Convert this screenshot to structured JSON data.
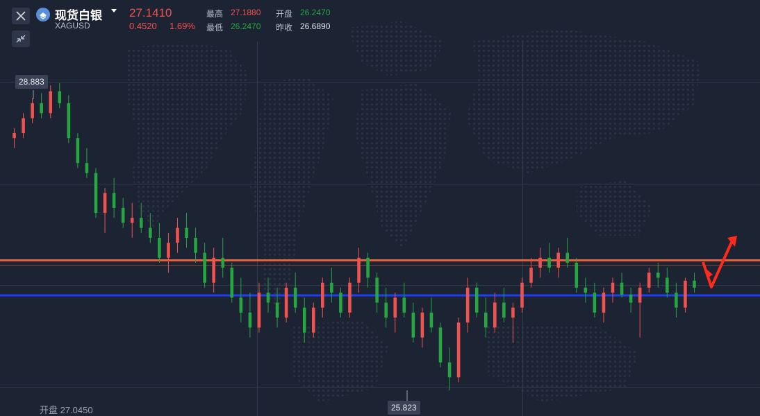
{
  "header": {
    "close_icon": "close-icon",
    "collapse_icon": "collapse-arrows-icon",
    "logo_icon": "silver-logo-icon",
    "title": "现货白银",
    "symbol": "XAGUSD",
    "price": "27.1410",
    "change": "0.4520",
    "change_pct": "1.69%",
    "high_label": "最高",
    "high_value": "27.1880",
    "low_label": "最低",
    "low_value": "26.2470",
    "open_label": "开盘",
    "open_value": "26.2470",
    "prev_close_label": "昨收",
    "prev_close_value": "26.6890"
  },
  "footer": {
    "open_text": "开盘 27.0450"
  },
  "colors": {
    "background": "#1c2333",
    "up": "#ef5350",
    "down": "#26a641",
    "resistance": "#e8603c",
    "support": "#1e3ff0",
    "arrow": "#ff2a1a"
  },
  "chart_data": {
    "type": "candlestick",
    "y_range": [
      25.6,
      29.0
    ],
    "max_marker": "28.883",
    "min_marker": "25.823",
    "max_value": 28.883,
    "min_value": 25.823,
    "resistance_level": 27.2,
    "support_level": 26.8,
    "grid": true,
    "candles": [
      [
        28.35,
        28.45,
        28.25,
        28.4
      ],
      [
        28.4,
        28.6,
        28.35,
        28.55
      ],
      [
        28.55,
        28.75,
        28.5,
        28.7
      ],
      [
        28.7,
        28.8,
        28.55,
        28.6
      ],
      [
        28.6,
        28.88,
        28.55,
        28.82
      ],
      [
        28.82,
        28.9,
        28.65,
        28.7
      ],
      [
        28.7,
        28.78,
        28.3,
        28.35
      ],
      [
        28.35,
        28.4,
        28.05,
        28.1
      ],
      [
        28.1,
        28.25,
        27.95,
        28.0
      ],
      [
        28.0,
        28.05,
        27.55,
        27.6
      ],
      [
        27.6,
        27.85,
        27.4,
        27.8
      ],
      [
        27.8,
        27.95,
        27.55,
        27.65
      ],
      [
        27.65,
        27.75,
        27.45,
        27.5
      ],
      [
        27.5,
        27.7,
        27.35,
        27.55
      ],
      [
        27.55,
        27.7,
        27.4,
        27.45
      ],
      [
        27.45,
        27.6,
        27.3,
        27.35
      ],
      [
        27.35,
        27.5,
        27.1,
        27.15
      ],
      [
        27.15,
        27.4,
        27.0,
        27.3
      ],
      [
        27.3,
        27.55,
        27.2,
        27.45
      ],
      [
        27.45,
        27.6,
        27.25,
        27.35
      ],
      [
        27.35,
        27.45,
        27.1,
        27.2
      ],
      [
        27.2,
        27.3,
        26.85,
        26.9
      ],
      [
        26.9,
        27.25,
        26.8,
        27.15
      ],
      [
        27.15,
        27.35,
        26.95,
        27.05
      ],
      [
        27.05,
        27.1,
        26.7,
        26.75
      ],
      [
        26.75,
        26.95,
        26.5,
        26.6
      ],
      [
        26.6,
        26.8,
        26.35,
        26.45
      ],
      [
        26.45,
        26.9,
        26.4,
        26.8
      ],
      [
        26.8,
        26.95,
        26.6,
        26.7
      ],
      [
        26.7,
        26.85,
        26.45,
        26.55
      ],
      [
        26.55,
        26.9,
        26.5,
        26.85
      ],
      [
        26.85,
        27.0,
        26.6,
        26.65
      ],
      [
        26.65,
        26.75,
        26.3,
        26.4
      ],
      [
        26.4,
        26.7,
        26.35,
        26.65
      ],
      [
        26.65,
        26.95,
        26.55,
        26.9
      ],
      [
        26.9,
        27.05,
        26.7,
        26.8
      ],
      [
        26.8,
        26.85,
        26.55,
        26.6
      ],
      [
        26.6,
        26.95,
        26.55,
        26.9
      ],
      [
        26.9,
        27.25,
        26.8,
        27.15
      ],
      [
        27.15,
        27.2,
        26.85,
        26.95
      ],
      [
        26.95,
        27.0,
        26.6,
        26.7
      ],
      [
        26.7,
        26.85,
        26.45,
        26.55
      ],
      [
        26.55,
        26.8,
        26.4,
        26.75
      ],
      [
        26.75,
        26.9,
        26.55,
        26.6
      ],
      [
        26.6,
        26.7,
        26.3,
        26.35
      ],
      [
        26.35,
        26.65,
        26.25,
        26.6
      ],
      [
        26.6,
        26.75,
        26.4,
        26.45
      ],
      [
        26.45,
        26.5,
        26.05,
        26.1
      ],
      [
        26.1,
        26.25,
        25.82,
        25.95
      ],
      [
        25.95,
        26.55,
        25.9,
        26.5
      ],
      [
        26.5,
        26.95,
        26.4,
        26.85
      ],
      [
        26.85,
        26.9,
        26.55,
        26.6
      ],
      [
        26.6,
        26.75,
        26.35,
        26.45
      ],
      [
        26.45,
        26.8,
        26.4,
        26.7
      ],
      [
        26.7,
        26.85,
        26.5,
        26.55
      ],
      [
        26.55,
        26.7,
        26.3,
        26.65
      ],
      [
        26.65,
        26.95,
        26.6,
        26.9
      ],
      [
        26.9,
        27.15,
        26.85,
        27.05
      ],
      [
        27.05,
        27.25,
        26.95,
        27.15
      ],
      [
        27.15,
        27.3,
        27.0,
        27.05
      ],
      [
        27.05,
        27.25,
        26.95,
        27.2
      ],
      [
        27.2,
        27.35,
        27.05,
        27.1
      ],
      [
        27.1,
        27.15,
        26.8,
        26.85
      ],
      [
        26.85,
        26.95,
        26.7,
        26.8
      ],
      [
        26.8,
        26.9,
        26.55,
        26.6
      ],
      [
        26.6,
        26.85,
        26.5,
        26.8
      ],
      [
        26.8,
        26.95,
        26.7,
        26.9
      ],
      [
        26.9,
        27.0,
        26.75,
        26.78
      ],
      [
        26.78,
        26.85,
        26.6,
        26.7
      ],
      [
        26.7,
        26.9,
        26.35,
        26.85
      ],
      [
        26.85,
        27.05,
        26.8,
        27.0
      ],
      [
        27.0,
        27.1,
        26.85,
        26.95
      ],
      [
        26.95,
        27.05,
        26.75,
        26.8
      ],
      [
        26.8,
        26.9,
        26.55,
        26.65
      ],
      [
        26.65,
        26.95,
        26.6,
        26.92
      ],
      [
        26.92,
        27.0,
        26.8,
        26.85
      ]
    ]
  }
}
